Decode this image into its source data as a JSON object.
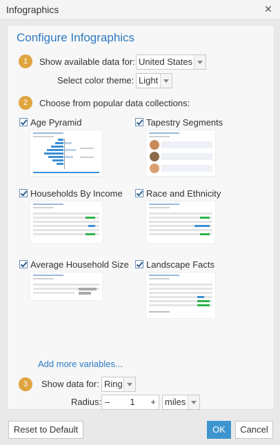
{
  "window": {
    "title": "Infographics",
    "close_glyph": "✕"
  },
  "panel": {
    "heading": "Configure Infographics"
  },
  "step1": {
    "number": "1",
    "show_label": "Show available data for:",
    "country": "United States",
    "theme_label": "Select color theme:",
    "theme": "Light"
  },
  "step2": {
    "number": "2",
    "label": "Choose from popular data collections:",
    "collections": [
      {
        "label": "Age Pyramid",
        "checked": true
      },
      {
        "label": "Tapestry Segments",
        "checked": true
      },
      {
        "label": "Households By Income",
        "checked": true
      },
      {
        "label": "Race and Ethnicity",
        "checked": true
      },
      {
        "label": "Average Household Size",
        "checked": true
      },
      {
        "label": "Landscape Facts",
        "checked": true
      }
    ]
  },
  "add_more": "Add more variables...",
  "step3": {
    "number": "3",
    "show_label": "Show data for:",
    "shape": "Ring",
    "radius_label": "Radius:",
    "radius_value": "1",
    "minus": "–",
    "plus": "+",
    "unit": "miles"
  },
  "buttons": {
    "reset": "Reset to Default",
    "ok": "OK",
    "cancel": "Cancel"
  },
  "colors": {
    "accent": "#2c7ac0",
    "step_badge": "#e0a440",
    "ok_button": "#3d95cf"
  }
}
